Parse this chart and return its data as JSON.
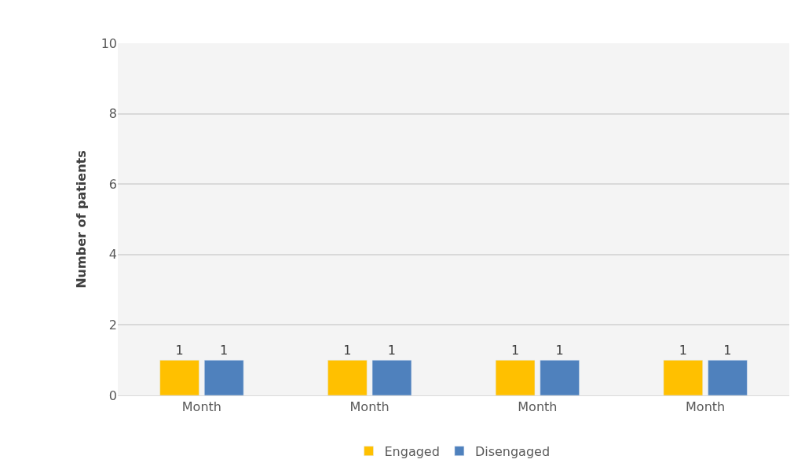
{
  "chart_data": {
    "type": "bar",
    "ylabel": "Number of patients",
    "categories": [
      "Month",
      "Month",
      "Month",
      "Month"
    ],
    "series": [
      {
        "name": "Engaged",
        "color": "#ffc000",
        "values": [
          1,
          1,
          1,
          1
        ]
      },
      {
        "name": "Disengaged",
        "color": "#4f81bd",
        "values": [
          1,
          1,
          1,
          1
        ]
      }
    ],
    "ylim": [
      0,
      10
    ],
    "yticks": [
      0,
      2,
      4,
      6,
      8,
      10
    ],
    "grid": "y",
    "legend": "bottom",
    "data_labels": true
  }
}
